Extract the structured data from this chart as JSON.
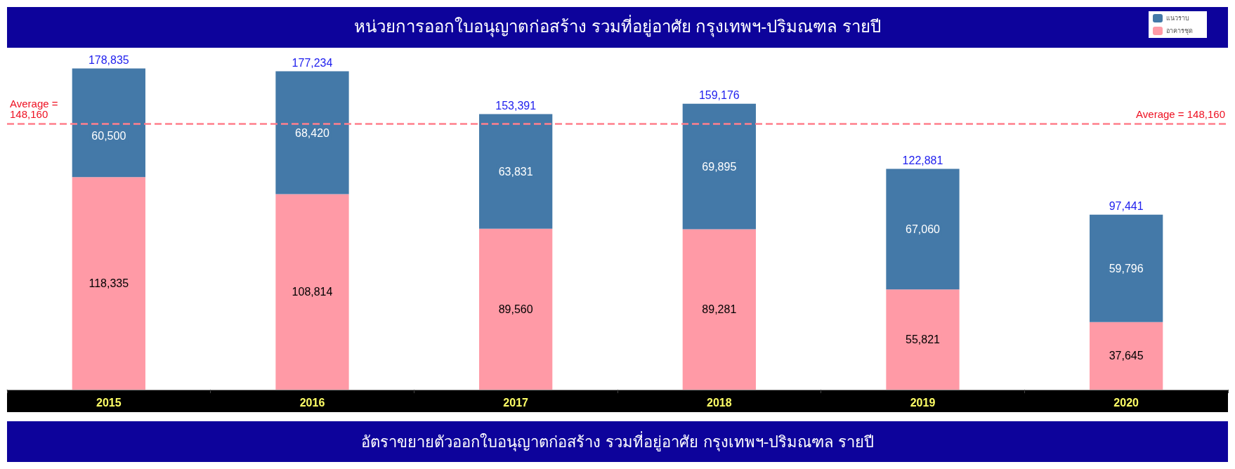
{
  "chart_data": {
    "type": "bar",
    "title": "หน่วยการออกใบอนุญาตก่อสร้าง รวมที่อยู่อาศัย กรุงเทพฯ-ปริมณฑล รายปี",
    "categories": [
      "2015",
      "2016",
      "2017",
      "2018",
      "2019",
      "2020"
    ],
    "stacked": true,
    "legend": "top right",
    "grid": false,
    "series": [
      {
        "name": "อาคารชุด",
        "color": "#ff9aa6",
        "values": [
          118335,
          108814,
          89560,
          89281,
          55821,
          37645
        ],
        "value_labels": [
          "118,335",
          "108,814",
          "89,560",
          "89,281",
          "55,821",
          "37,645"
        ]
      },
      {
        "name": "แนวราบ",
        "color": "#4479a8",
        "values": [
          60500,
          68420,
          63831,
          69895,
          67060,
          59796
        ],
        "value_labels": [
          "60,500",
          "68,420",
          "63,831",
          "69,895",
          "67,060",
          "59,796"
        ]
      }
    ],
    "totals": [
      "178,835",
      "177,234",
      "153,391",
      "159,176",
      "122,881",
      "97,441"
    ],
    "ref_lines": [
      {
        "axis": "y",
        "value": 148160,
        "label": "Average = 148,160",
        "color": "#ff7f8c",
        "line_style": "dashed"
      }
    ],
    "annotations": [
      "อัตราขยายตัวออกใบอนุญาตก่อสร้าง รวมที่อยู่อาศัย กรุงเทพฯ-ปริมณฑล รายปี"
    ]
  }
}
